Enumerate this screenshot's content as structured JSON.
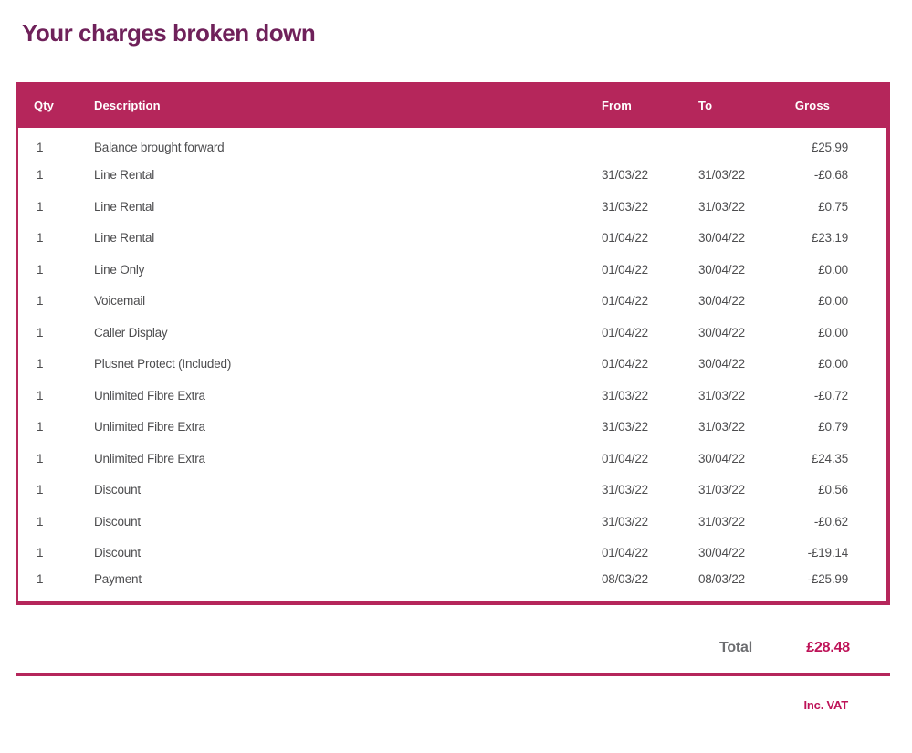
{
  "page": {
    "title": "Your charges broken down"
  },
  "colors": {
    "brand_plum": "#6F215A",
    "brand_magenta": "#B5265B",
    "total_value_magenta": "#BE1358",
    "body_text_gray": "#4D4D4F",
    "total_label_gray": "#6D6E71"
  },
  "table": {
    "headers": {
      "qty": "Qty",
      "description": "Description",
      "from": "From",
      "to": "To",
      "gross": "Gross"
    },
    "rows": [
      {
        "qty": "1",
        "description": "Balance brought forward",
        "from": "",
        "to": "",
        "gross": "£25.99"
      },
      {
        "qty": "1",
        "description": "Line Rental",
        "from": "31/03/22",
        "to": "31/03/22",
        "gross": "-£0.68"
      },
      {
        "qty": "1",
        "description": "Line Rental",
        "from": "31/03/22",
        "to": "31/03/22",
        "gross": "£0.75"
      },
      {
        "qty": "1",
        "description": "Line Rental",
        "from": "01/04/22",
        "to": "30/04/22",
        "gross": "£23.19"
      },
      {
        "qty": "1",
        "description": "Line Only",
        "from": "01/04/22",
        "to": "30/04/22",
        "gross": "£0.00"
      },
      {
        "qty": "1",
        "description": "Voicemail",
        "from": "01/04/22",
        "to": "30/04/22",
        "gross": "£0.00"
      },
      {
        "qty": "1",
        "description": "Caller Display",
        "from": "01/04/22",
        "to": "30/04/22",
        "gross": "£0.00"
      },
      {
        "qty": "1",
        "description": "Plusnet Protect (Included)",
        "from": "01/04/22",
        "to": "30/04/22",
        "gross": "£0.00"
      },
      {
        "qty": "1",
        "description": "Unlimited Fibre Extra",
        "from": "31/03/22",
        "to": "31/03/22",
        "gross": "-£0.72"
      },
      {
        "qty": "1",
        "description": "Unlimited Fibre Extra",
        "from": "31/03/22",
        "to": "31/03/22",
        "gross": "£0.79"
      },
      {
        "qty": "1",
        "description": "Unlimited Fibre Extra",
        "from": "01/04/22",
        "to": "30/04/22",
        "gross": "£24.35"
      },
      {
        "qty": "1",
        "description": "Discount",
        "from": "31/03/22",
        "to": "31/03/22",
        "gross": "£0.56"
      },
      {
        "qty": "1",
        "description": "Discount",
        "from": "31/03/22",
        "to": "31/03/22",
        "gross": "-£0.62"
      },
      {
        "qty": "1",
        "description": "Discount",
        "from": "01/04/22",
        "to": "30/04/22",
        "gross": "-£19.14"
      },
      {
        "qty": "1",
        "description": "Payment",
        "from": "08/03/22",
        "to": "08/03/22",
        "gross": "-£25.99"
      }
    ]
  },
  "summary": {
    "total_label": "Total",
    "total_value": "£28.48",
    "vat_note": "Inc. VAT"
  }
}
